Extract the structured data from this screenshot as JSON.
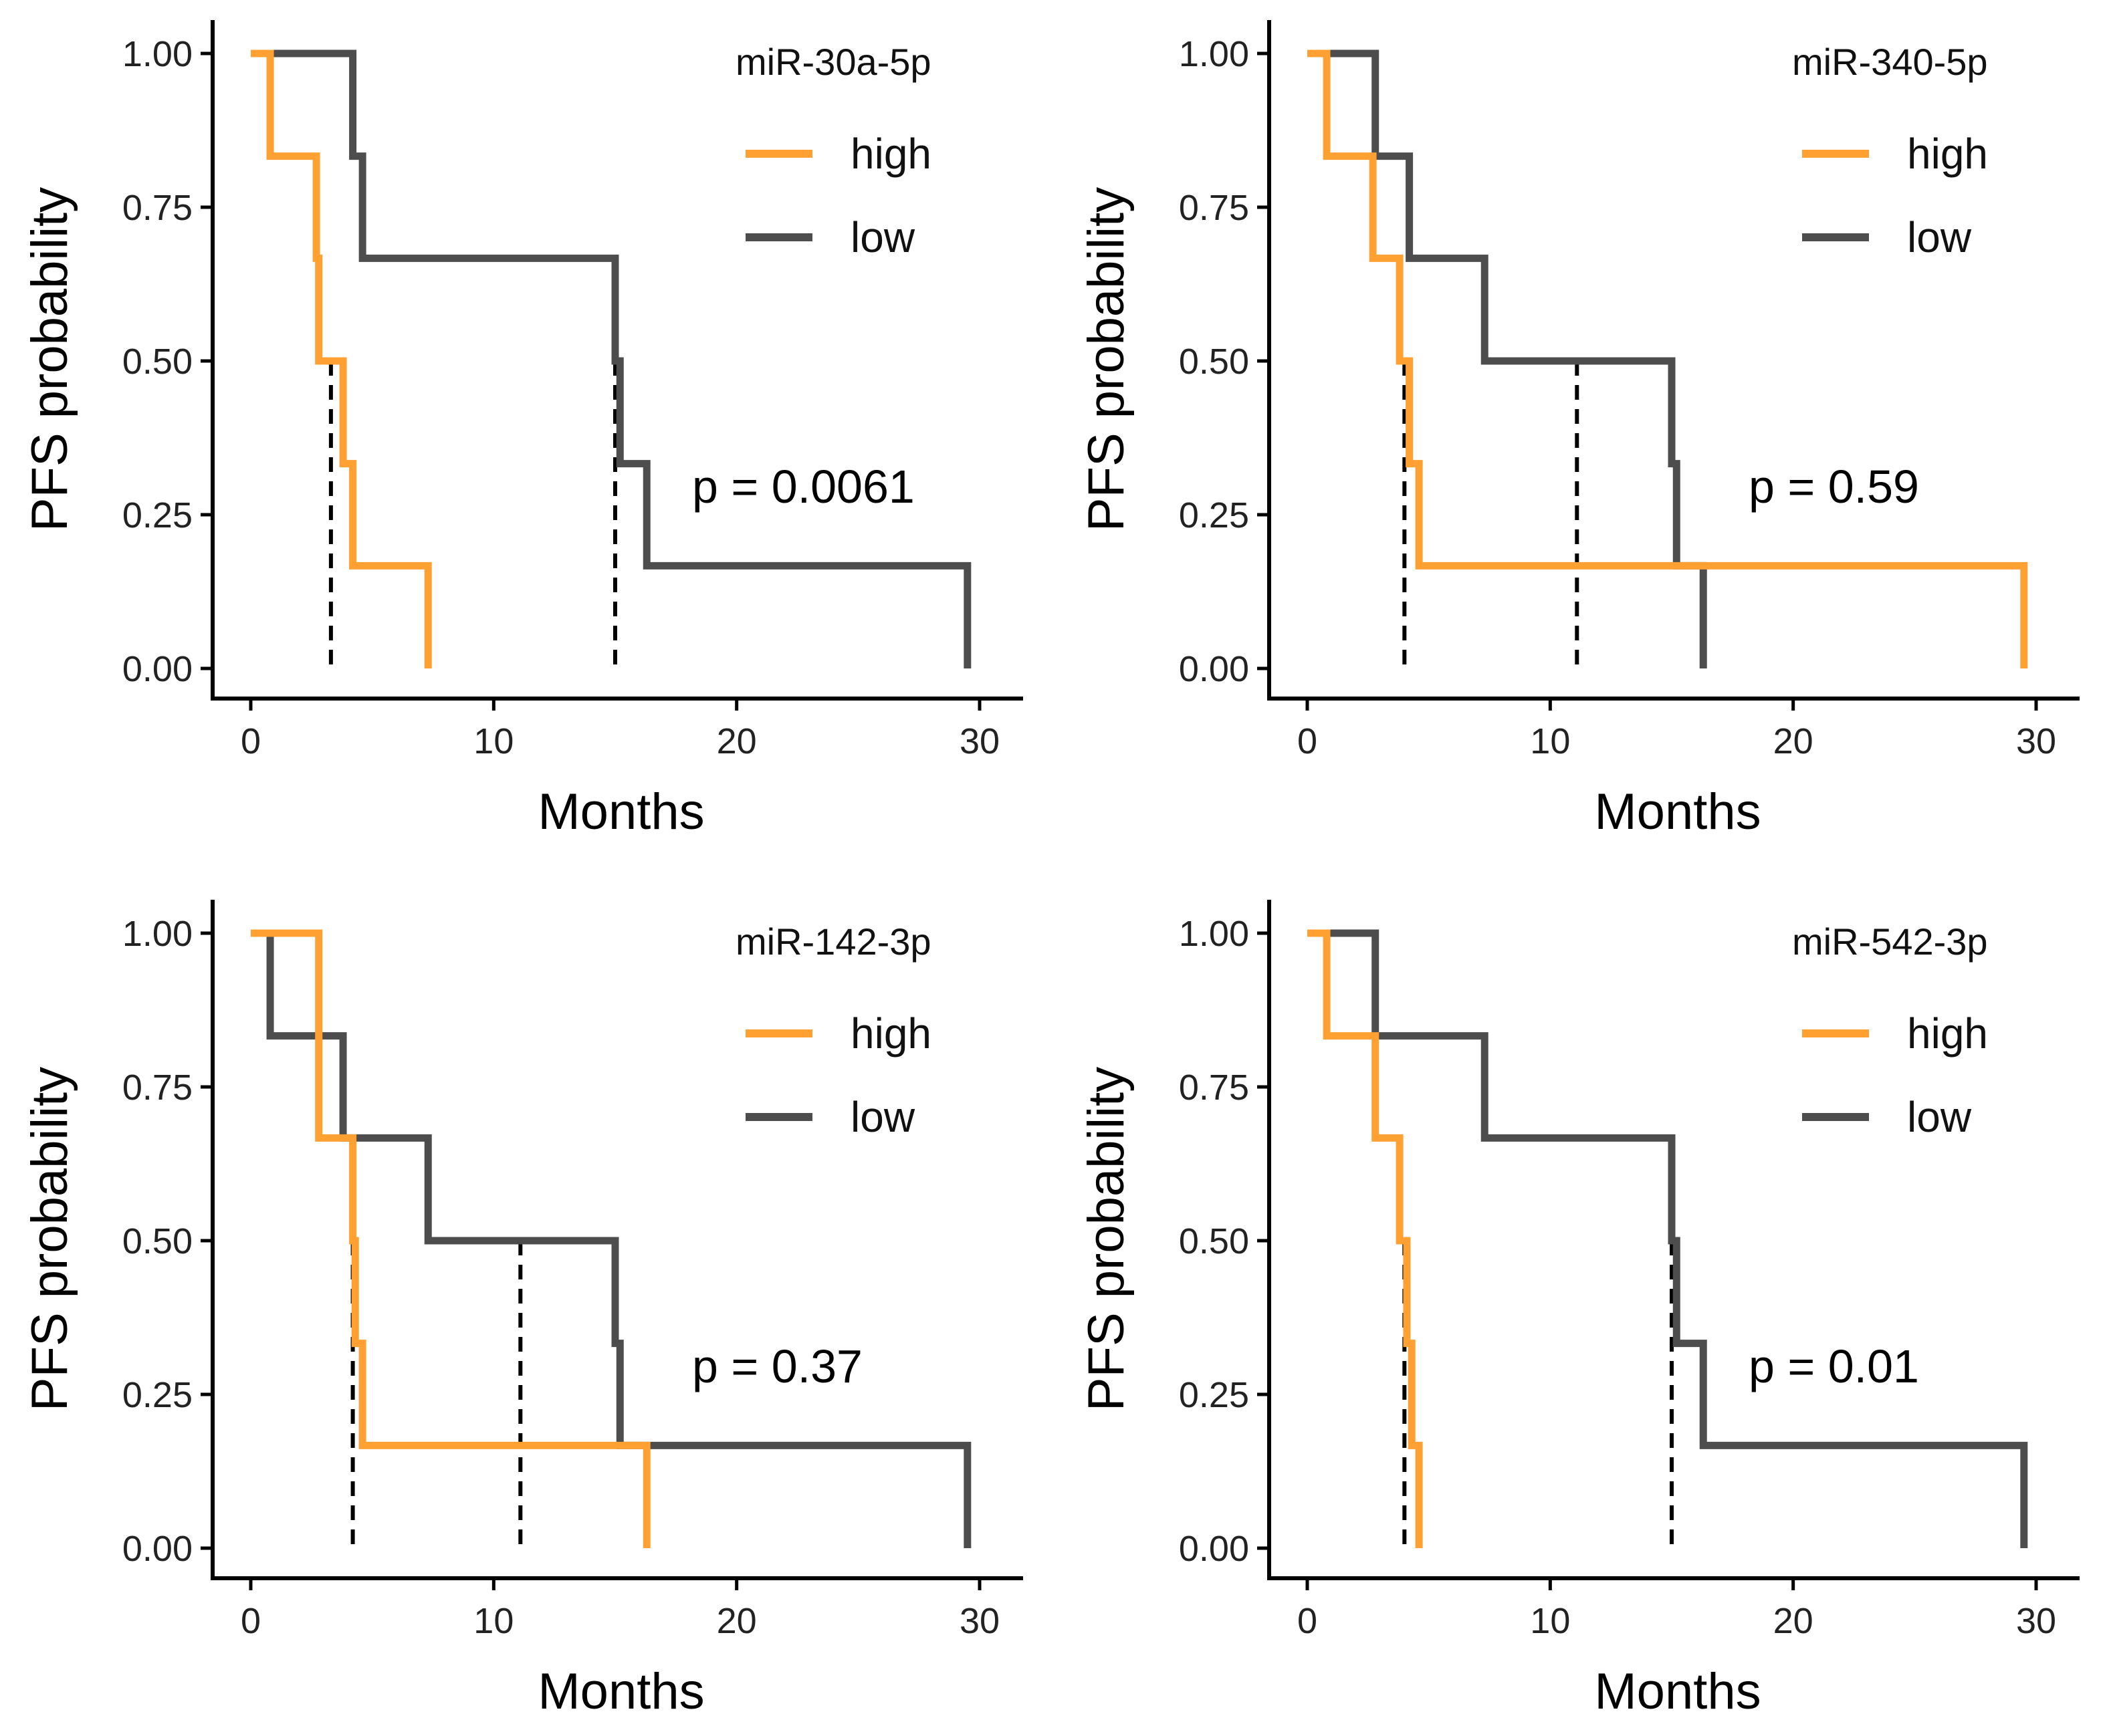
{
  "colors": {
    "high": "#FFA033",
    "low": "#4D4D4D",
    "axis": "#000000",
    "median": "#000000"
  },
  "chart_data": [
    {
      "type": "line",
      "title": "miR-30a-5p",
      "xlabel": "Months",
      "ylabel": "PFS probability",
      "xlim": [
        0,
        30
      ],
      "ylim": [
        0,
        1
      ],
      "xticks": [
        0,
        10,
        20,
        30
      ],
      "xtick_labels": [
        "0",
        "10",
        "20",
        "30"
      ],
      "yticks": [
        0,
        0.25,
        0.5,
        0.75,
        1
      ],
      "ytick_labels": [
        "0.00",
        "0.25",
        "0.50",
        "0.75",
        "1.00"
      ],
      "legend": {
        "title": "miR-30a-5p",
        "entries": [
          "high",
          "low"
        ],
        "position": "top-right"
      },
      "p_value": "p = 0.0061",
      "series": [
        {
          "name": "high",
          "x": [
            0,
            0.8,
            2.7,
            2.8,
            3.8,
            4.2,
            7.3
          ],
          "y": [
            1,
            0.833,
            0.667,
            0.5,
            0.333,
            0.167,
            0
          ]
        },
        {
          "name": "low",
          "x": [
            0,
            4.2,
            4.6,
            15.0,
            15.2,
            16.3,
            29.5
          ],
          "y": [
            1,
            0.833,
            0.667,
            0.5,
            0.333,
            0.167,
            0
          ]
        }
      ],
      "medians": [
        3.3,
        15.0
      ]
    },
    {
      "type": "line",
      "title": "miR-340-5p",
      "xlabel": "Months",
      "ylabel": "PFS probability",
      "xlim": [
        0,
        30
      ],
      "ylim": [
        0,
        1
      ],
      "xticks": [
        0,
        10,
        20,
        30
      ],
      "xtick_labels": [
        "0",
        "10",
        "20",
        "30"
      ],
      "yticks": [
        0,
        0.25,
        0.5,
        0.75,
        1
      ],
      "ytick_labels": [
        "0.00",
        "0.25",
        "0.50",
        "0.75",
        "1.00"
      ],
      "legend": {
        "title": "miR-340-5p",
        "entries": [
          "high",
          "low"
        ],
        "position": "top-right"
      },
      "p_value": "p = 0.59",
      "series": [
        {
          "name": "high",
          "x": [
            0,
            0.8,
            2.7,
            3.8,
            4.2,
            4.6,
            29.5
          ],
          "y": [
            1,
            0.833,
            0.667,
            0.5,
            0.333,
            0.167,
            0
          ]
        },
        {
          "name": "low",
          "x": [
            0,
            2.8,
            4.2,
            7.3,
            15.0,
            15.2,
            16.3
          ],
          "y": [
            1,
            0.833,
            0.667,
            0.5,
            0.333,
            0.167,
            0
          ]
        }
      ],
      "medians": [
        4.0,
        11.1
      ]
    },
    {
      "type": "line",
      "title": "miR-142-3p",
      "xlabel": "Months",
      "ylabel": "PFS probability",
      "xlim": [
        0,
        30
      ],
      "ylim": [
        0,
        1
      ],
      "xticks": [
        0,
        10,
        20,
        30
      ],
      "xtick_labels": [
        "0",
        "10",
        "20",
        "30"
      ],
      "yticks": [
        0,
        0.25,
        0.5,
        0.75,
        1
      ],
      "ytick_labels": [
        "0.00",
        "0.25",
        "0.50",
        "0.75",
        "1.00"
      ],
      "legend": {
        "title": "miR-142-3p",
        "entries": [
          "high",
          "low"
        ],
        "position": "top-right"
      },
      "p_value": "p = 0.37",
      "series": [
        {
          "name": "high",
          "x": [
            0,
            2.8,
            4.2,
            4.3,
            4.6,
            16.3
          ],
          "y": [
            1,
            0.667,
            0.5,
            0.333,
            0.167,
            0
          ]
        },
        {
          "name": "low",
          "x": [
            0,
            0.8,
            3.8,
            7.3,
            15.0,
            15.2,
            29.5
          ],
          "y": [
            1,
            0.833,
            0.667,
            0.5,
            0.333,
            0.167,
            0
          ]
        }
      ],
      "medians": [
        4.2,
        11.1
      ]
    },
    {
      "type": "line",
      "title": "miR-542-3p",
      "xlabel": "Months",
      "ylabel": "PFS probability",
      "xlim": [
        0,
        30
      ],
      "ylim": [
        0,
        1
      ],
      "xticks": [
        0,
        10,
        20,
        30
      ],
      "xtick_labels": [
        "0",
        "10",
        "20",
        "30"
      ],
      "yticks": [
        0,
        0.25,
        0.5,
        0.75,
        1
      ],
      "ytick_labels": [
        "0.00",
        "0.25",
        "0.50",
        "0.75",
        "1.00"
      ],
      "legend": {
        "title": "miR-542-3p",
        "entries": [
          "high",
          "low"
        ],
        "position": "top-right"
      },
      "p_value": "p = 0.01",
      "series": [
        {
          "name": "high",
          "x": [
            0,
            0.8,
            2.8,
            3.8,
            4.1,
            4.3,
            4.6
          ],
          "y": [
            1,
            0.833,
            0.667,
            0.5,
            0.333,
            0.167,
            0
          ]
        },
        {
          "name": "low",
          "x": [
            0,
            2.8,
            7.3,
            15.0,
            15.2,
            16.3,
            29.5
          ],
          "y": [
            1,
            0.833,
            0.667,
            0.5,
            0.333,
            0.167,
            0
          ]
        }
      ],
      "medians": [
        4.0,
        15.0
      ]
    }
  ]
}
